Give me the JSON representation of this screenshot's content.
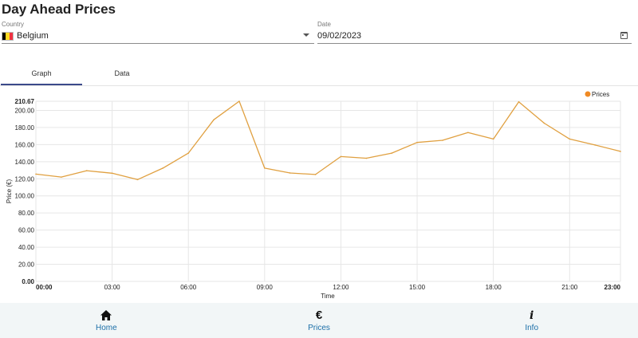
{
  "header": {
    "title": "Day Ahead Prices"
  },
  "country": {
    "label": "Country",
    "value": "Belgium",
    "flag_colors": [
      "#000000",
      "#FDDA24",
      "#EF3340"
    ]
  },
  "date": {
    "label": "Date",
    "value": "09/02/2023"
  },
  "tabs": [
    {
      "label": "Graph",
      "active": true
    },
    {
      "label": "Data",
      "active": false
    }
  ],
  "colors": {
    "line": "#e0a040",
    "legend_dot": "#f08a24",
    "grid": "#e6e6e6",
    "accent": "#1c6fa8"
  },
  "chart_data": {
    "type": "line",
    "xlabel": "Time",
    "ylabel": "Price (€)",
    "ylim": [
      0,
      210.67
    ],
    "y_ticks": [
      "0.00",
      "20.00",
      "40.00",
      "60.00",
      "80.00",
      "100.00",
      "120.00",
      "140.00",
      "160.00",
      "180.00",
      "200.00",
      "210.67"
    ],
    "x_ticks": [
      "00:00",
      "03:00",
      "06:00",
      "09:00",
      "12:00",
      "15:00",
      "18:00",
      "21:00",
      "23:00"
    ],
    "x_tick_hours": [
      0,
      3,
      6,
      9,
      12,
      15,
      18,
      21,
      23
    ],
    "legend": {
      "label": "Prices",
      "position": "top-right"
    },
    "grid": true,
    "series": [
      {
        "name": "Prices",
        "x": [
          0,
          1,
          2,
          3,
          4,
          5,
          6,
          7,
          8,
          9,
          10,
          11,
          12,
          13,
          14,
          15,
          16,
          17,
          18,
          19,
          20,
          21,
          22,
          23
        ],
        "values": [
          125.5,
          122,
          129.5,
          126.5,
          119,
          132.5,
          150,
          189,
          210.67,
          132.5,
          126.8,
          125,
          146,
          144,
          150,
          162.5,
          165,
          174,
          166.5,
          210,
          185,
          166.5,
          159.5,
          152
        ]
      }
    ]
  },
  "nav": [
    {
      "label": "Home",
      "icon": "home-icon"
    },
    {
      "label": "Prices",
      "icon": "euro-icon"
    },
    {
      "label": "Info",
      "icon": "info-icon"
    }
  ]
}
